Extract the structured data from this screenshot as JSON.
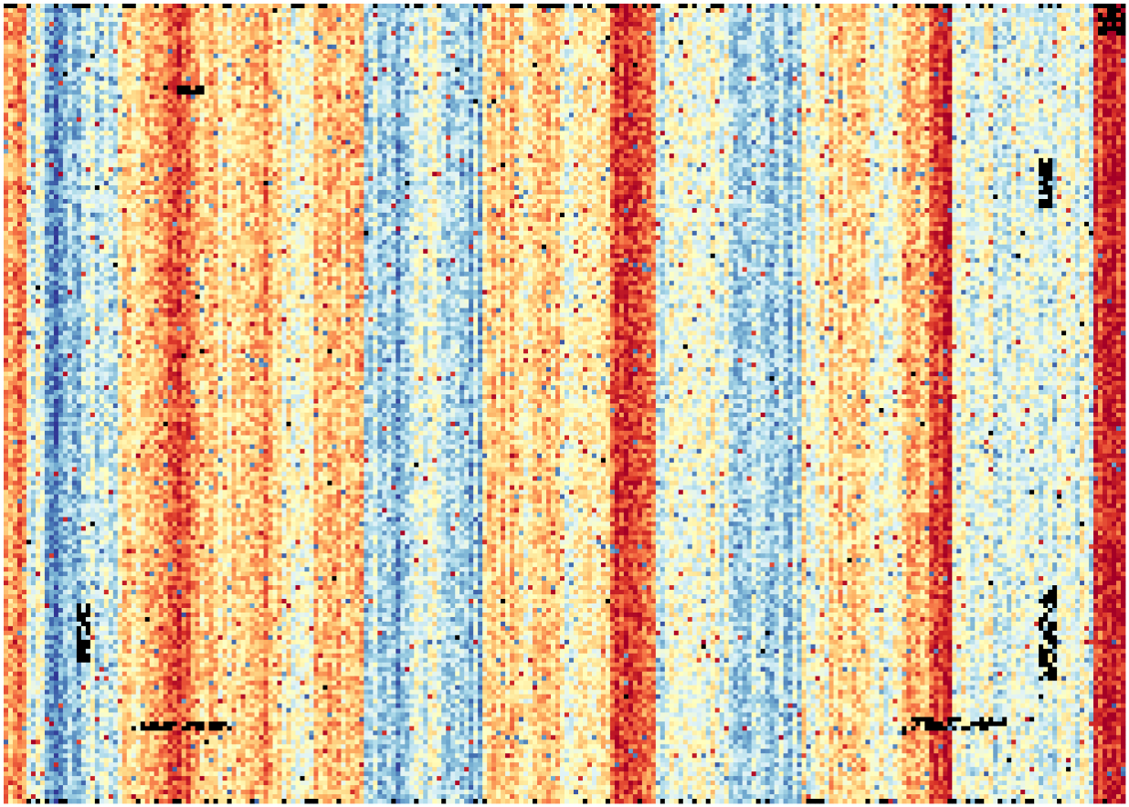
{
  "chart_data": {
    "type": "heatmap",
    "title": "",
    "xlabel": "",
    "ylabel": "",
    "axes_visible": false,
    "colorbar_visible": false,
    "colormap": "RdYlBu_r",
    "colormap_stops": [
      "#313695",
      "#4575b4",
      "#74add1",
      "#abd9e9",
      "#e0f3f8",
      "#ffffbf",
      "#fee090",
      "#fdae61",
      "#f46d43",
      "#d73027",
      "#a50026"
    ],
    "missing_value_color": "#000000",
    "value_range": [
      0,
      1
    ],
    "grid": {
      "rows": 176,
      "cols": 246
    },
    "column_profile_note": "",
    "column_profile": [
      {
        "col_from": 0,
        "col_to": 4,
        "value": 0.7
      },
      {
        "col_from": 5,
        "col_to": 8,
        "value": 0.4
      },
      {
        "col_from": 9,
        "col_to": 12,
        "value": 0.12
      },
      {
        "col_from": 13,
        "col_to": 18,
        "value": 0.3
      },
      {
        "col_from": 19,
        "col_to": 24,
        "value": 0.38
      },
      {
        "col_from": 25,
        "col_to": 30,
        "value": 0.56
      },
      {
        "col_from": 31,
        "col_to": 36,
        "value": 0.74
      },
      {
        "col_from": 37,
        "col_to": 40,
        "value": 0.84
      },
      {
        "col_from": 41,
        "col_to": 44,
        "value": 0.62
      },
      {
        "col_from": 45,
        "col_to": 52,
        "value": 0.6
      },
      {
        "col_from": 53,
        "col_to": 60,
        "value": 0.68
      },
      {
        "col_from": 61,
        "col_to": 67,
        "value": 0.54
      },
      {
        "col_from": 68,
        "col_to": 72,
        "value": 0.62
      },
      {
        "col_from": 73,
        "col_to": 78,
        "value": 0.66
      },
      {
        "col_from": 79,
        "col_to": 82,
        "value": 0.32
      },
      {
        "col_from": 83,
        "col_to": 88,
        "value": 0.26
      },
      {
        "col_from": 89,
        "col_to": 96,
        "value": 0.4
      },
      {
        "col_from": 97,
        "col_to": 104,
        "value": 0.28
      },
      {
        "col_from": 105,
        "col_to": 112,
        "value": 0.62
      },
      {
        "col_from": 113,
        "col_to": 122,
        "value": 0.58
      },
      {
        "col_from": 123,
        "col_to": 132,
        "value": 0.52
      },
      {
        "col_from": 133,
        "col_to": 138,
        "value": 0.9
      },
      {
        "col_from": 139,
        "col_to": 142,
        "value": 0.82
      },
      {
        "col_from": 143,
        "col_to": 150,
        "value": 0.42
      },
      {
        "col_from": 151,
        "col_to": 158,
        "value": 0.48
      },
      {
        "col_from": 159,
        "col_to": 164,
        "value": 0.36
      },
      {
        "col_from": 165,
        "col_to": 174,
        "value": 0.3
      },
      {
        "col_from": 175,
        "col_to": 180,
        "value": 0.48
      },
      {
        "col_from": 181,
        "col_to": 188,
        "value": 0.6
      },
      {
        "col_from": 189,
        "col_to": 196,
        "value": 0.52
      },
      {
        "col_from": 197,
        "col_to": 202,
        "value": 0.66
      },
      {
        "col_from": 203,
        "col_to": 207,
        "value": 0.86
      },
      {
        "col_from": 208,
        "col_to": 214,
        "value": 0.46
      },
      {
        "col_from": 215,
        "col_to": 222,
        "value": 0.42
      },
      {
        "col_from": 223,
        "col_to": 230,
        "value": 0.36
      },
      {
        "col_from": 231,
        "col_to": 238,
        "value": 0.44
      },
      {
        "col_from": 239,
        "col_to": 245,
        "value": 0.88
      }
    ],
    "missing_cells_note": "",
    "missing_rects": [
      {
        "r0": 0,
        "r1": 0,
        "c0": 0,
        "c1": 245,
        "density": 0.28
      },
      {
        "r0": 175,
        "r1": 175,
        "c0": 0,
        "c1": 245,
        "density": 0.25
      },
      {
        "r0": 18,
        "r1": 19,
        "c0": 38,
        "c1": 43,
        "density": 0.9
      },
      {
        "r0": 132,
        "r1": 144,
        "c0": 16,
        "c1": 18,
        "density": 0.7
      },
      {
        "r0": 158,
        "r1": 159,
        "c0": 28,
        "c1": 49,
        "density": 0.65
      },
      {
        "r0": 157,
        "r1": 159,
        "c0": 197,
        "c1": 219,
        "density": 0.55
      },
      {
        "r0": 34,
        "r1": 44,
        "c0": 227,
        "c1": 229,
        "density": 0.8
      },
      {
        "r0": 128,
        "r1": 148,
        "c0": 227,
        "c1": 230,
        "density": 0.6
      },
      {
        "r0": 0,
        "r1": 6,
        "c0": 240,
        "c1": 245,
        "density": 0.7
      }
    ]
  }
}
